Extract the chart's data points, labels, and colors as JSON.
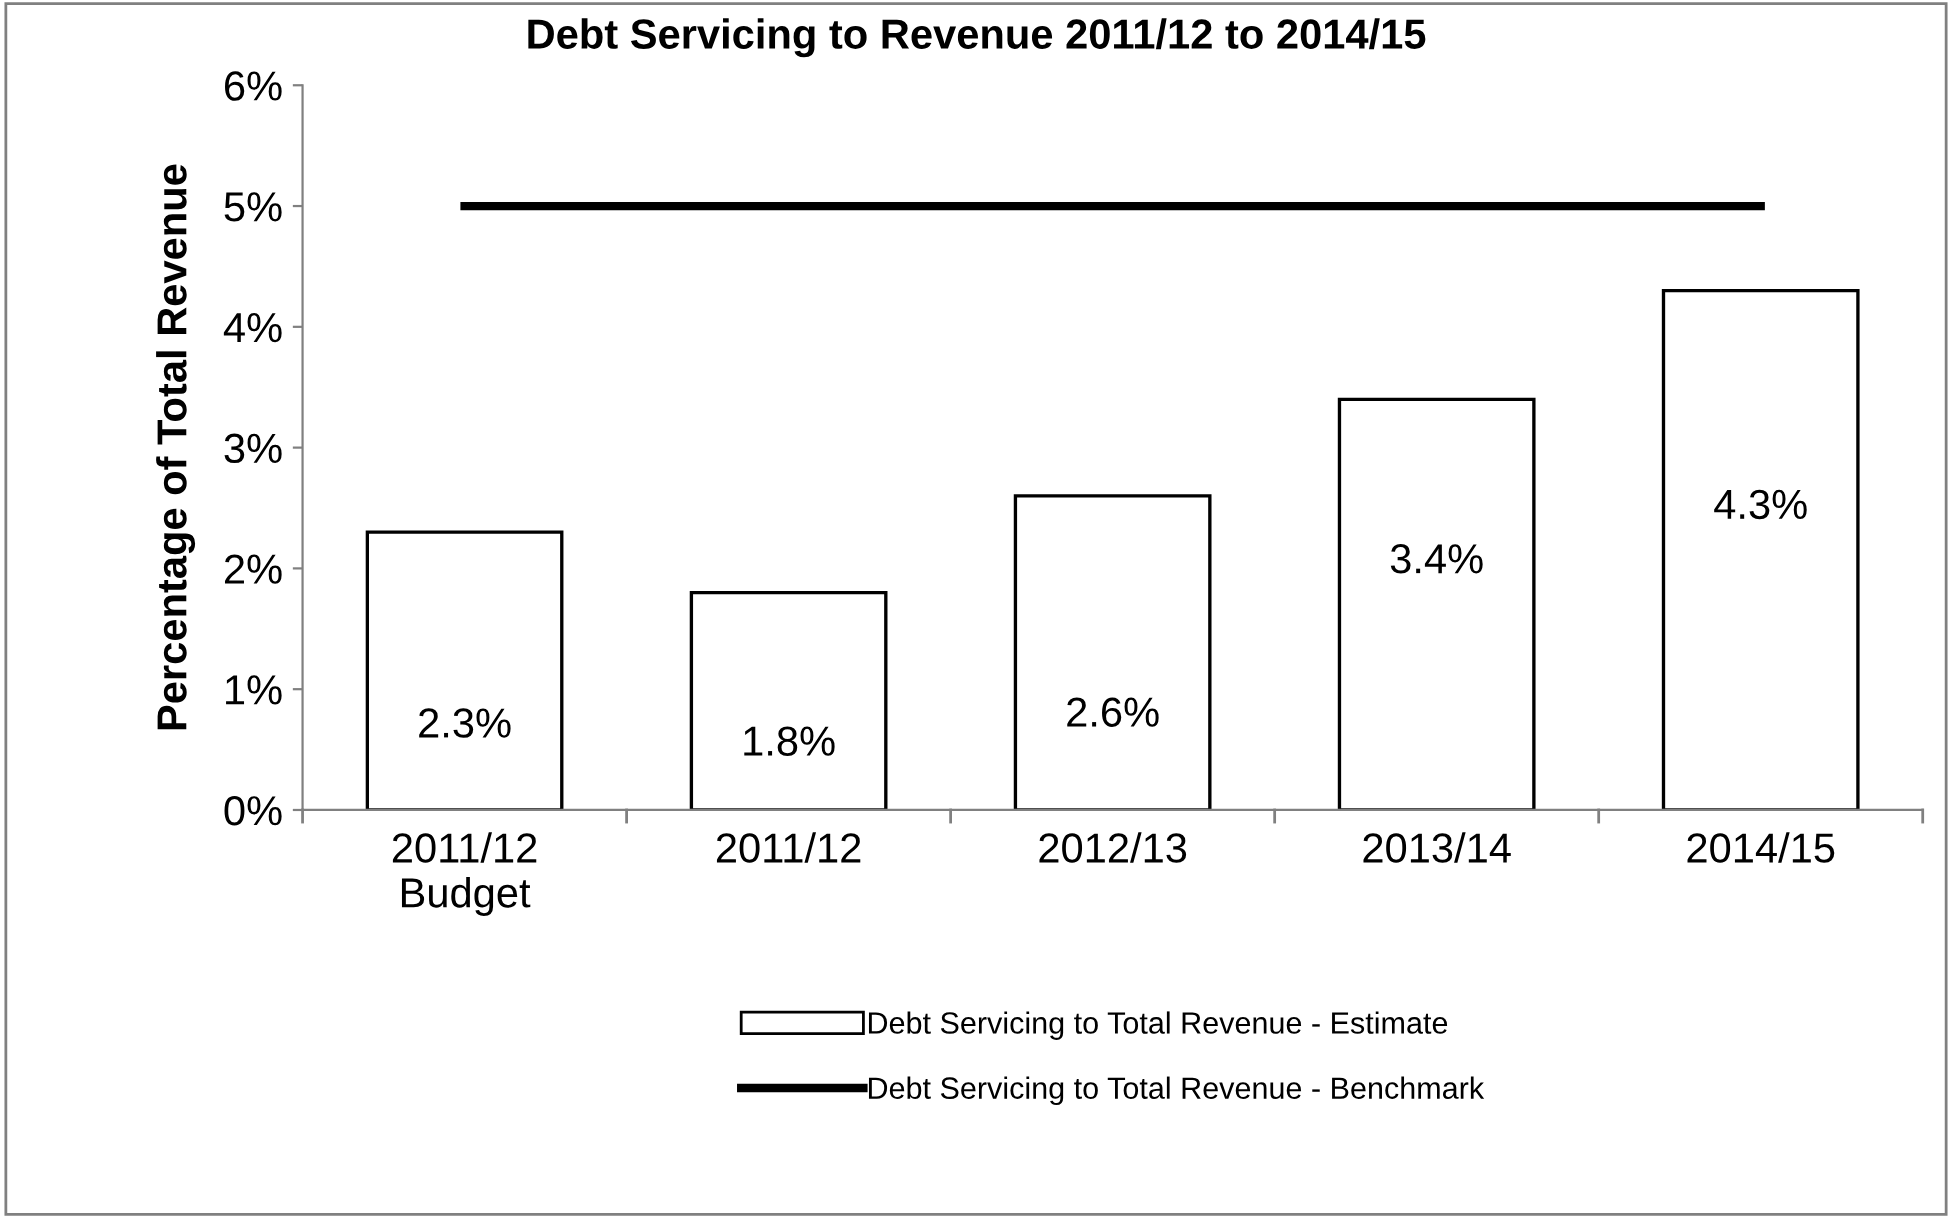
{
  "chart_data": {
    "type": "bar",
    "title": "Debt Servicing to Revenue 2011/12 to 2014/15",
    "ylabel": "Percentage of Total Revenue",
    "categories": [
      "2011/12\nBudget",
      "2011/12",
      "2012/13",
      "2013/14",
      "2014/15"
    ],
    "series": [
      {
        "name": "Debt Servicing to Total Revenue - Estimate",
        "color": "#ffffff",
        "values": [
          2.3,
          1.8,
          2.6,
          3.4,
          4.3
        ],
        "value_labels": [
          "2.3%",
          "1.8%",
          "2.6%",
          "3.4%",
          "4.3%"
        ]
      },
      {
        "name": "Debt Servicing to Total Revenue - Benchmark",
        "type": "line",
        "color": "#000000",
        "values": [
          5,
          5,
          5,
          5,
          5
        ]
      }
    ],
    "ylim": [
      0,
      6
    ],
    "yticks": [
      {
        "value": 0,
        "label": "0%"
      },
      {
        "value": 1,
        "label": "1%"
      },
      {
        "value": 2,
        "label": "2%"
      },
      {
        "value": 3,
        "label": "3%"
      },
      {
        "value": 4,
        "label": "4%"
      },
      {
        "value": 5,
        "label": "5%"
      },
      {
        "value": 6,
        "label": "6%"
      }
    ],
    "grid": false,
    "legend": "bottom"
  }
}
